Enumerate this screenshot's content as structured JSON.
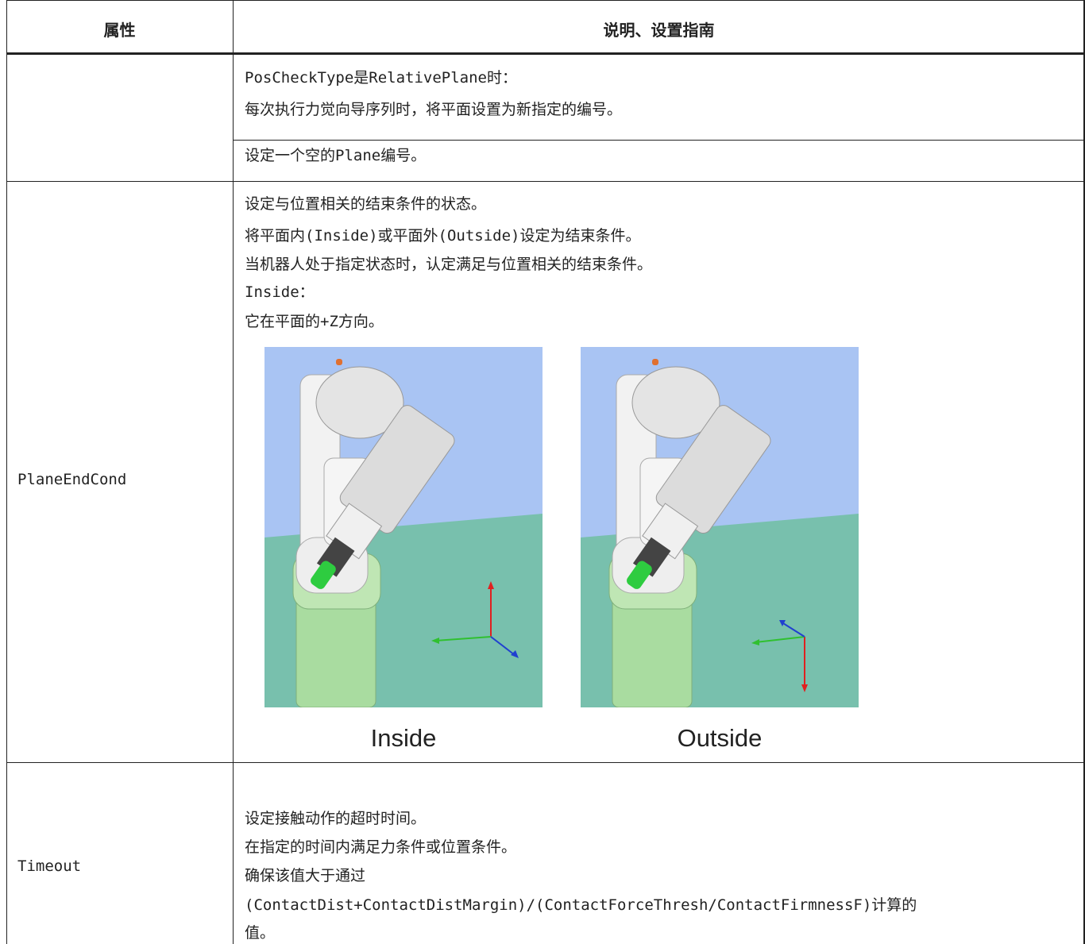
{
  "table": {
    "header": [
      "属性",
      "说明、设置指南"
    ],
    "rows": [
      {
        "description": [
          [
            "PosCheckType是RelativePlane时：",
            "每次执行力觉向导序列时，将平面设置为新指定的编号。"
          ],
          [
            "设定一个空的Plane编号。"
          ]
        ]
      },
      {
        "property": "PlaneEndCond",
        "description": [
          "设定与位置相关的结束条件的状态。",
          "将平面内(Inside)或平面外(Outside)设定为结束条件。",
          "当机器人处于指定状态时，认定满足与位置相关的结束条件。",
          "Inside：",
          "它在平面的+Z方向。"
        ],
        "figure_captions": [
          "Inside",
          "Outside"
        ]
      },
      {
        "property": "Timeout",
        "description": [
          "设定接触动作的超时时间。",
          "在指定的时间内满足力条件或位置条件。",
          "确保该值大于通过",
          "(ContactDist+ContactDistMargin)/(ContactForceThresh/ContactFirmnessF)计算的",
          "值。"
        ]
      }
    ]
  }
}
